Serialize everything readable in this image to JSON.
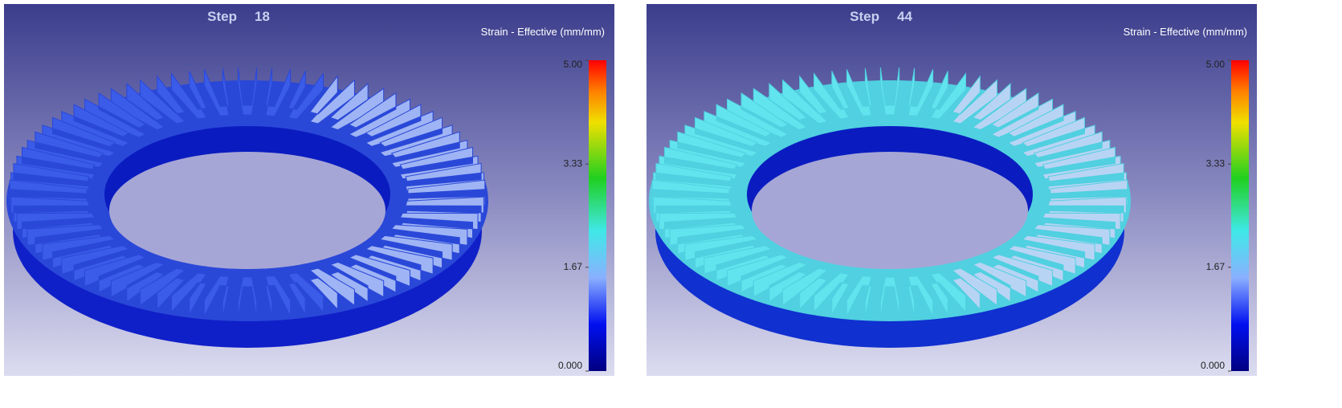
{
  "panels": [
    {
      "title": "Step",
      "step": "18",
      "legend_title": "Strain - Effective (mm/mm)",
      "ticks": [
        {
          "value": 5,
          "label": "5.00"
        },
        3.33,
        1.67,
        {
          "value": 0,
          "label": "0.000"
        }
      ]
    },
    {
      "title": "Step",
      "step": "44",
      "legend_title": "Strain - Effective (mm/mm)",
      "ticks": [
        {
          "value": 5,
          "label": "5.00"
        },
        3.33,
        1.67,
        {
          "value": 0,
          "label": "0.000"
        }
      ]
    }
  ]
}
